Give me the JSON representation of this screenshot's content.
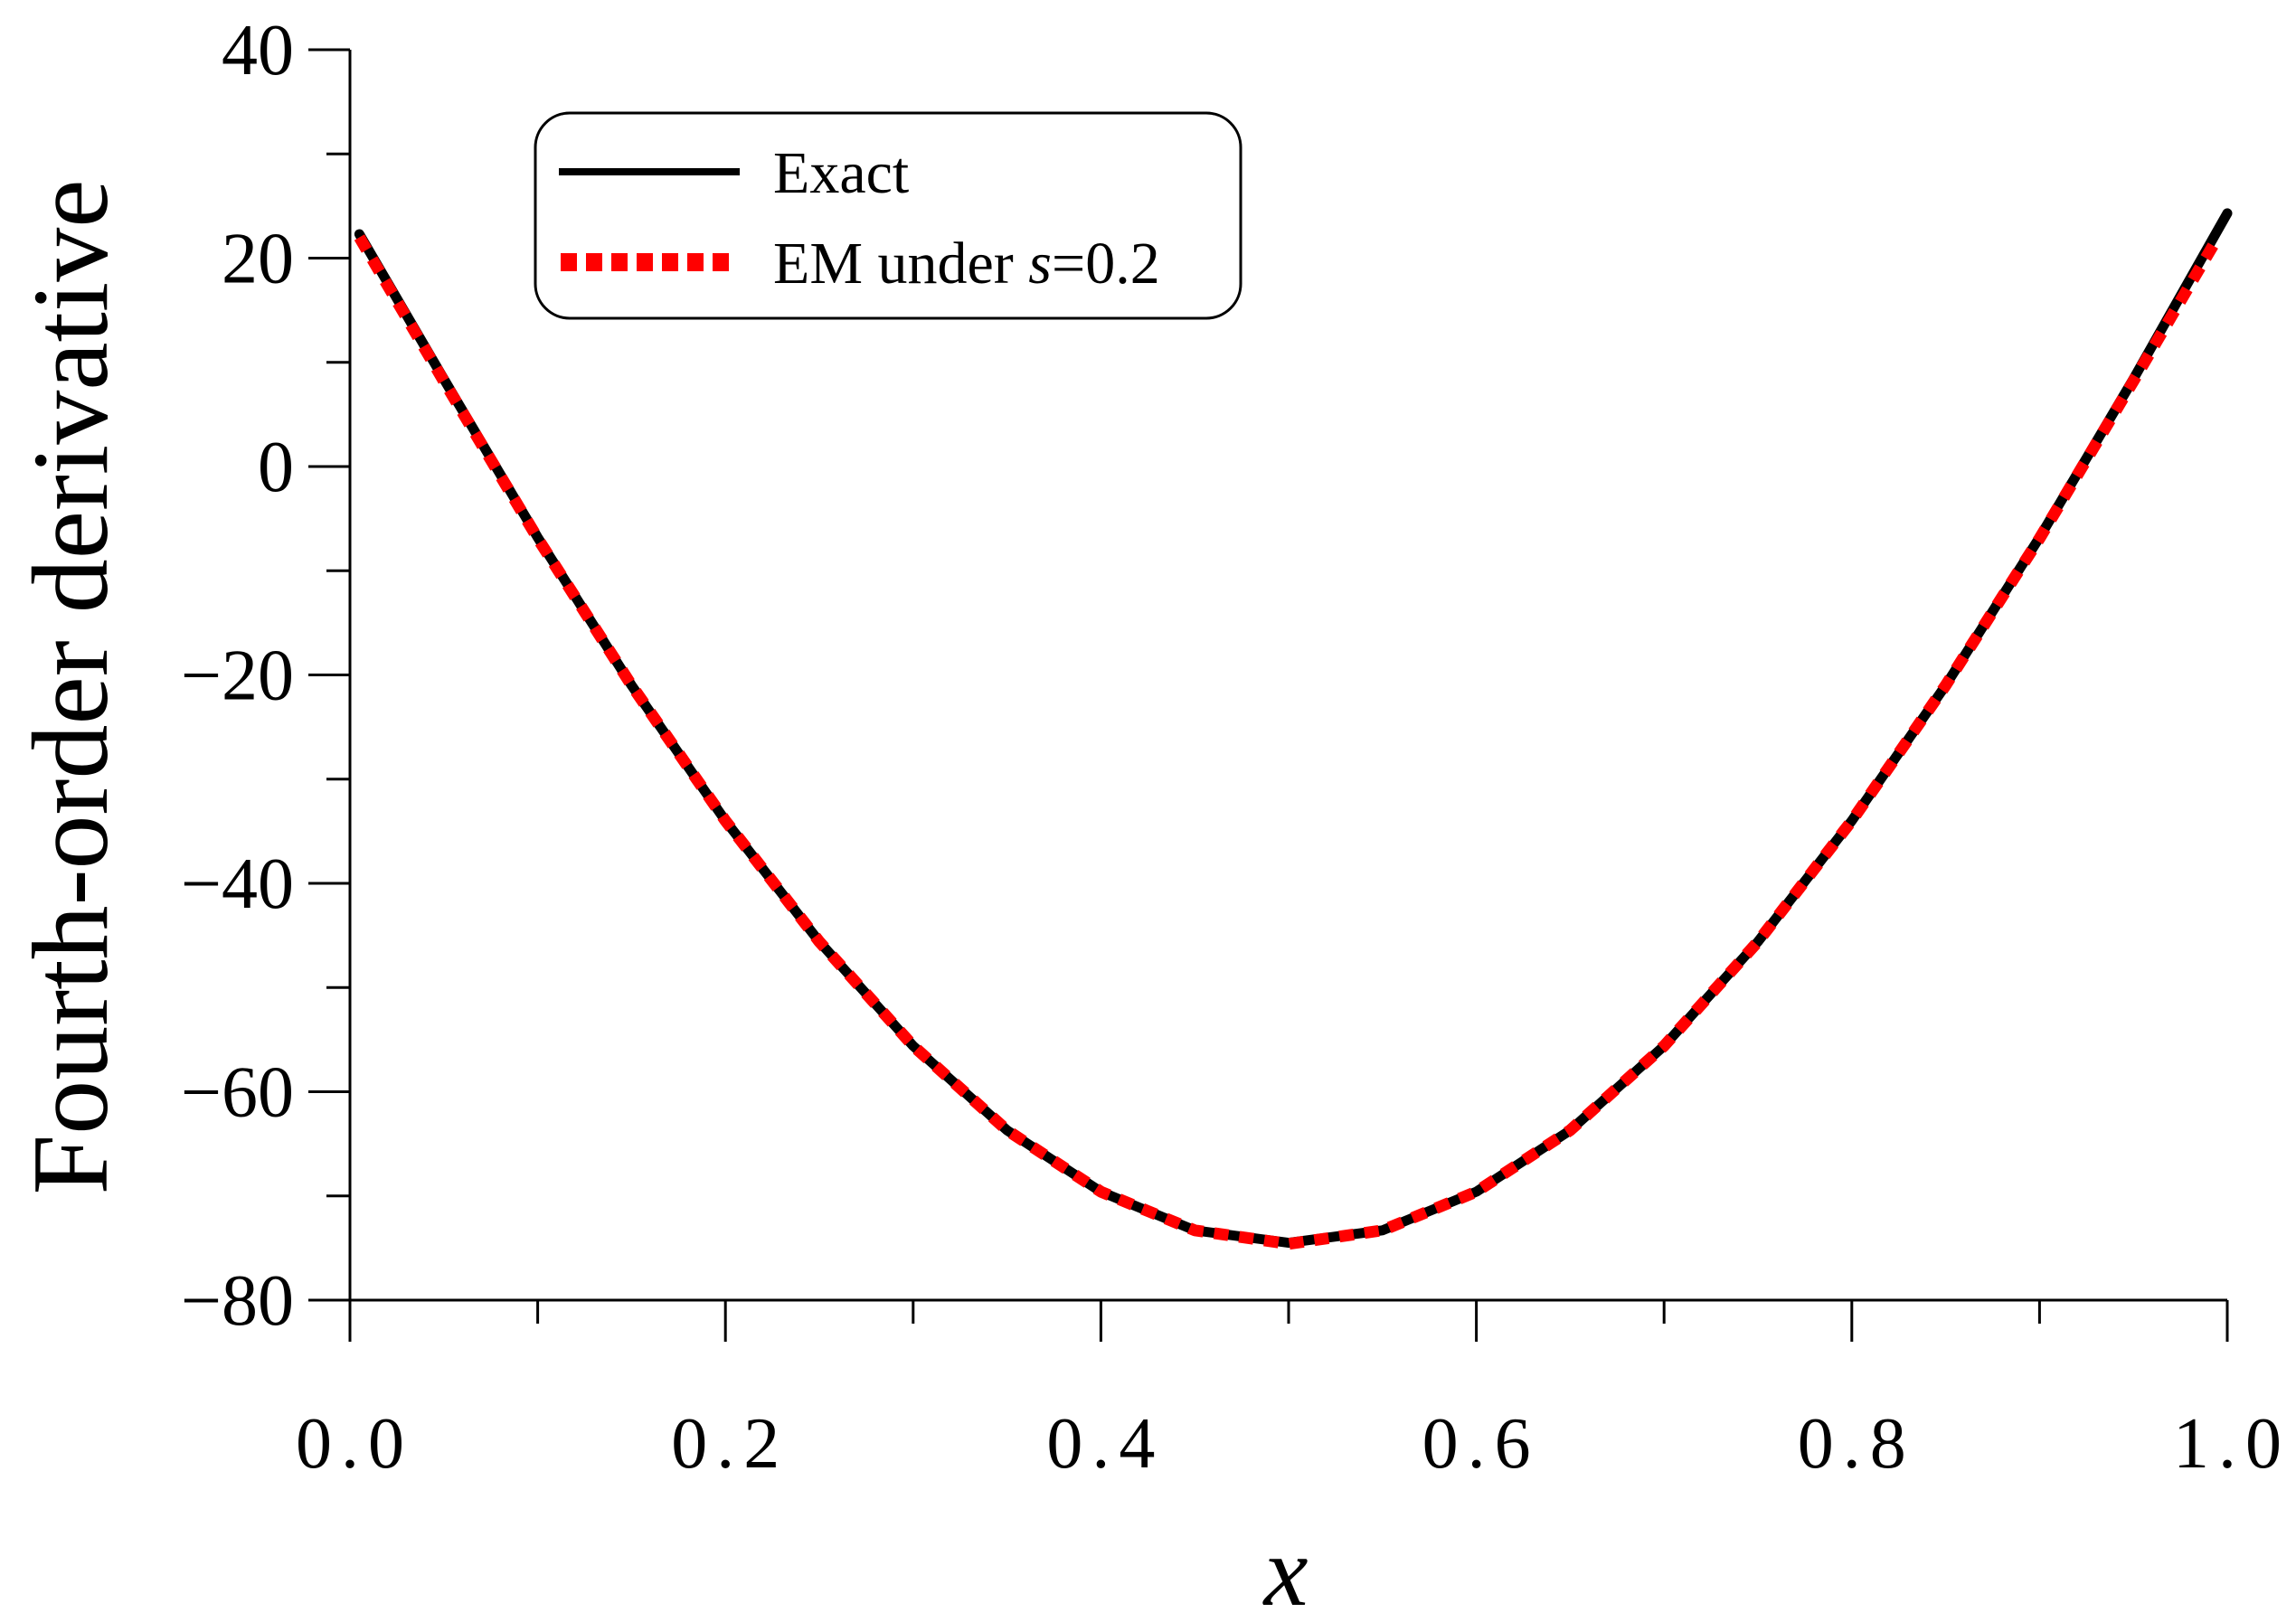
{
  "chart_data": {
    "type": "line",
    "xlabel": "x",
    "ylabel": "Fourth-order derivative",
    "xlim": [
      0.0,
      1.0
    ],
    "ylim": [
      -80,
      40
    ],
    "xticks": [
      "0.0",
      "0.2",
      "0.4",
      "0.6",
      "0.8",
      "1.0"
    ],
    "yticks": [
      "40",
      "20",
      "0",
      "−20",
      "−40",
      "−60",
      "−80"
    ],
    "xtick_values": [
      0.0,
      0.2,
      0.4,
      0.6,
      0.8,
      1.0
    ],
    "ytick_values": [
      40,
      20,
      0,
      -20,
      -40,
      -60,
      -80
    ],
    "legend": {
      "placement": "top-left"
    },
    "series": [
      {
        "name": "Exact",
        "color": "#000000",
        "style": "solid",
        "x": [
          0.005,
          0.05,
          0.1,
          0.15,
          0.2,
          0.25,
          0.3,
          0.35,
          0.4,
          0.45,
          0.5,
          0.55,
          0.6,
          0.65,
          0.7,
          0.75,
          0.8,
          0.85,
          0.9,
          0.95,
          1.0
        ],
        "y": [
          22.3,
          8.4,
          -6.8,
          -21.0,
          -34.0,
          -45.6,
          -55.6,
          -63.7,
          -69.6,
          -73.3,
          -74.5,
          -73.3,
          -69.6,
          -63.7,
          -55.6,
          -45.6,
          -34.0,
          -21.0,
          -6.8,
          8.4,
          24.3
        ]
      },
      {
        "name": "EM under s=0.2",
        "name_prefix": "EM under ",
        "name_italic": "s",
        "name_suffix": "=0.2",
        "color": "#ff0000",
        "style": "dotted",
        "x": [
          0.005,
          0.05,
          0.1,
          0.15,
          0.2,
          0.25,
          0.3,
          0.35,
          0.4,
          0.45,
          0.5,
          0.55,
          0.6,
          0.65,
          0.7,
          0.75,
          0.8,
          0.85,
          0.9,
          0.95,
          0.995
        ],
        "y": [
          22.0,
          8.2,
          -6.9,
          -21.0,
          -34.0,
          -45.6,
          -55.6,
          -63.7,
          -69.6,
          -73.3,
          -74.6,
          -73.3,
          -69.6,
          -63.7,
          -55.6,
          -45.6,
          -34.0,
          -21.0,
          -6.9,
          8.2,
          22.0
        ]
      }
    ]
  }
}
